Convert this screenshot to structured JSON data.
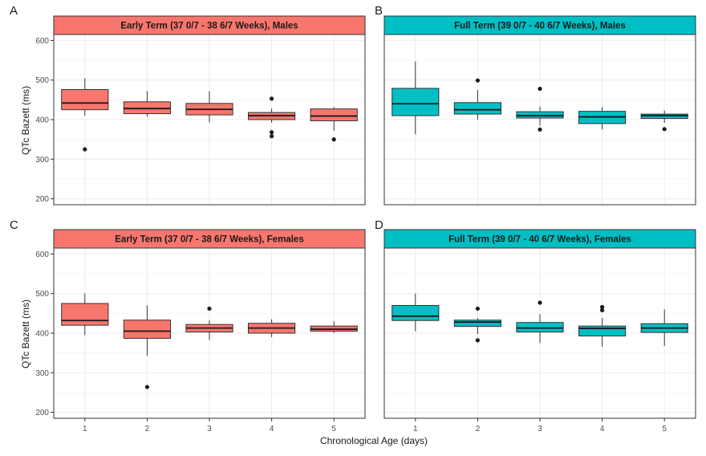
{
  "chart_data": {
    "type": "box",
    "x_label": "Chronological Age (days)",
    "y_label": "QTc Bazett (ms)",
    "ylim": [
      185,
      615
    ],
    "y_ticks": [
      200,
      300,
      400,
      500,
      600
    ],
    "categories": [
      "1",
      "2",
      "3",
      "4",
      "5"
    ],
    "grid": true,
    "panels": [
      {
        "tag": "A",
        "title": "Early Term (37 0/7 - 38 6/7 Weeks), Males",
        "fill": "#F8766D",
        "boxes": [
          {
            "x": "1",
            "whisker_low": 410,
            "q1": 425,
            "median": 442,
            "q3": 476,
            "whisker_high": 505,
            "outliers": [
              325
            ]
          },
          {
            "x": "2",
            "whisker_low": 408,
            "q1": 415,
            "median": 428,
            "q3": 445,
            "whisker_high": 472,
            "outliers": []
          },
          {
            "x": "3",
            "whisker_low": 393,
            "q1": 412,
            "median": 426,
            "q3": 441,
            "whisker_high": 472,
            "outliers": []
          },
          {
            "x": "4",
            "whisker_low": 392,
            "q1": 400,
            "median": 410,
            "q3": 418,
            "whisker_high": 428,
            "outliers": [
              453,
              368,
              358
            ]
          },
          {
            "x": "5",
            "whisker_low": 372,
            "q1": 397,
            "median": 409,
            "q3": 427,
            "whisker_high": 432,
            "outliers": [
              350
            ]
          }
        ]
      },
      {
        "tag": "B",
        "title": "Full Term (39 0/7 - 40 6/7 Weeks), Males",
        "fill": "#00BFC4",
        "boxes": [
          {
            "x": "1",
            "whisker_low": 363,
            "q1": 410,
            "median": 440,
            "q3": 479,
            "whisker_high": 547,
            "outliers": []
          },
          {
            "x": "2",
            "whisker_low": 400,
            "q1": 414,
            "median": 425,
            "q3": 443,
            "whisker_high": 475,
            "outliers": [
              499
            ]
          },
          {
            "x": "3",
            "whisker_low": 385,
            "q1": 404,
            "median": 410,
            "q3": 420,
            "whisker_high": 433,
            "outliers": [
              478,
              375
            ]
          },
          {
            "x": "4",
            "whisker_low": 375,
            "q1": 390,
            "median": 407,
            "q3": 421,
            "whisker_high": 432,
            "outliers": []
          },
          {
            "x": "5",
            "whisker_low": 392,
            "q1": 403,
            "median": 410,
            "q3": 414,
            "whisker_high": 423,
            "outliers": [
              376
            ]
          }
        ]
      },
      {
        "tag": "C",
        "title": "Early Term (37 0/7 - 38 6/7 Weeks), Females",
        "fill": "#F8766D",
        "boxes": [
          {
            "x": "1",
            "whisker_low": 395,
            "q1": 420,
            "median": 432,
            "q3": 475,
            "whisker_high": 500,
            "outliers": []
          },
          {
            "x": "2",
            "whisker_low": 343,
            "q1": 387,
            "median": 405,
            "q3": 433,
            "whisker_high": 470,
            "outliers": [
              264
            ]
          },
          {
            "x": "3",
            "whisker_low": 383,
            "q1": 403,
            "median": 413,
            "q3": 422,
            "whisker_high": 433,
            "outliers": [
              462
            ]
          },
          {
            "x": "4",
            "whisker_low": 390,
            "q1": 400,
            "median": 413,
            "q3": 425,
            "whisker_high": 435,
            "outliers": []
          },
          {
            "x": "5",
            "whisker_low": 400,
            "q1": 405,
            "median": 410,
            "q3": 418,
            "whisker_high": 430,
            "outliers": []
          }
        ]
      },
      {
        "tag": "D",
        "title": "Full Term (39 0/7 - 40 6/7 Weeks), Females",
        "fill": "#00BFC4",
        "boxes": [
          {
            "x": "1",
            "whisker_low": 405,
            "q1": 432,
            "median": 443,
            "q3": 470,
            "whisker_high": 500,
            "outliers": []
          },
          {
            "x": "2",
            "whisker_low": 398,
            "q1": 417,
            "median": 428,
            "q3": 433,
            "whisker_high": 438,
            "outliers": [
              462,
              382
            ]
          },
          {
            "x": "3",
            "whisker_low": 375,
            "q1": 403,
            "median": 413,
            "q3": 427,
            "whisker_high": 448,
            "outliers": [
              477
            ]
          },
          {
            "x": "4",
            "whisker_low": 366,
            "q1": 393,
            "median": 412,
            "q3": 418,
            "whisker_high": 438,
            "outliers": [
              466,
              458
            ]
          },
          {
            "x": "5",
            "whisker_low": 368,
            "q1": 402,
            "median": 413,
            "q3": 424,
            "whisker_high": 460,
            "outliers": []
          }
        ]
      }
    ]
  }
}
